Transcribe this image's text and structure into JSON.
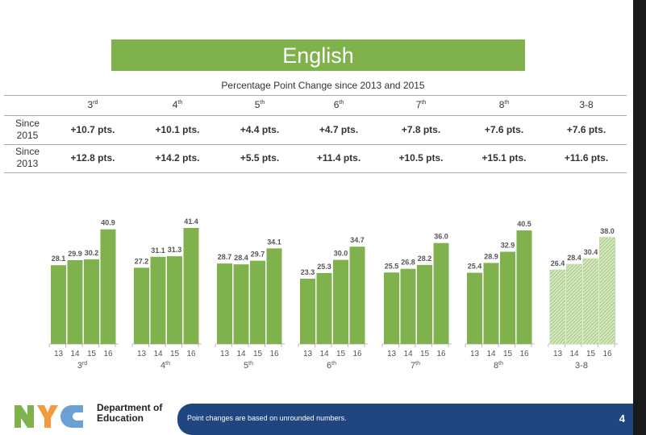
{
  "banner": "English",
  "table": {
    "title": "Percentage Point Change since 2013 and 2015",
    "columns": [
      {
        "n": "3",
        "s": "rd"
      },
      {
        "n": "4",
        "s": "th"
      },
      {
        "n": "5",
        "s": "th"
      },
      {
        "n": "6",
        "s": "th"
      },
      {
        "n": "7",
        "s": "th"
      },
      {
        "n": "8",
        "s": "th"
      },
      {
        "n": "3-8",
        "s": ""
      }
    ],
    "rows": [
      {
        "label1": "Since",
        "label2": "2015",
        "values": [
          "+10.7 pts.",
          "+10.1 pts.",
          "+4.4 pts.",
          "+4.7 pts.",
          "+7.8 pts.",
          "+7.6 pts.",
          "+7.6 pts."
        ]
      },
      {
        "label1": "Since",
        "label2": "2013",
        "values": [
          "+12.8 pts.",
          "+14.2 pts.",
          "+5.5 pts.",
          "+11.4 pts.",
          "+10.5 pts.",
          "+15.1 pts.",
          "+11.6 pts."
        ]
      }
    ]
  },
  "chart_data": {
    "type": "bar",
    "groups": [
      {
        "n": "3",
        "s": "rd"
      },
      {
        "n": "4",
        "s": "th"
      },
      {
        "n": "5",
        "s": "th"
      },
      {
        "n": "6",
        "s": "th"
      },
      {
        "n": "7",
        "s": "th"
      },
      {
        "n": "8",
        "s": "th"
      },
      {
        "n": "3-8",
        "s": ""
      }
    ],
    "categories": [
      "13",
      "14",
      "15",
      "16"
    ],
    "values": [
      [
        28.1,
        29.9,
        30.2,
        40.9
      ],
      [
        27.2,
        31.1,
        31.3,
        41.4
      ],
      [
        28.7,
        28.4,
        29.7,
        34.1
      ],
      [
        23.3,
        25.3,
        30.0,
        34.7
      ],
      [
        25.5,
        26.8,
        28.2,
        36.0
      ],
      [
        25.4,
        28.9,
        32.9,
        40.5
      ],
      [
        26.4,
        28.4,
        30.4,
        38.0
      ]
    ],
    "ylim": [
      0,
      45
    ],
    "color": "#7fb24d",
    "hatched_group": "3-8",
    "data_labels": true
  },
  "footer": {
    "note": "Point changes are based on unrounded numbers.",
    "page": "4",
    "dept1": "Department of",
    "dept2": "Education"
  },
  "colors": {
    "green": "#7fb24d",
    "navy": "#1f4680",
    "nyc_orange": "#f49a3a",
    "nyc_blue": "#6aa0d4"
  }
}
